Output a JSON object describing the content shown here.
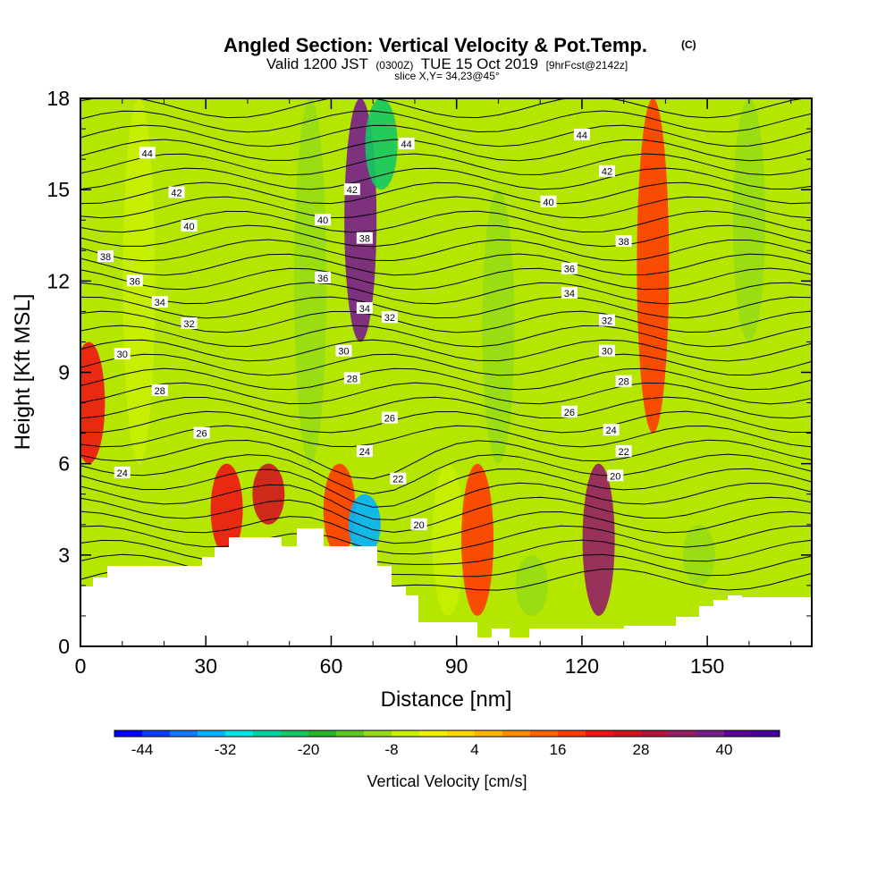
{
  "chart_data": {
    "type": "heatmap",
    "title": "Angled Section: Vertical Velocity & Pot.Temp.",
    "title_suffix": "(C)",
    "subtitle_parts": [
      "Valid 1200 JST",
      "(0300Z)",
      "TUE 15 Oct 2019",
      "[9hrFcst@2142z]"
    ],
    "slice_text": "slice X,Y= 34,23@45°",
    "xlabel": "Distance [nm]",
    "ylabel": "Height [Kft MSL]",
    "xlim": [
      0,
      175
    ],
    "ylim": [
      0,
      18
    ],
    "x_ticks": [
      0,
      30,
      60,
      90,
      120,
      150
    ],
    "y_ticks": [
      0,
      3,
      6,
      9,
      12,
      15,
      18
    ],
    "colorbar": {
      "title": "Vertical Velocity [cm/s]",
      "min": -48,
      "max": 48,
      "step": 4,
      "tick_values": [
        -44,
        -32,
        -20,
        -8,
        4,
        16,
        28,
        40
      ],
      "colors": [
        "#0000ff",
        "#0a3cff",
        "#0d7aff",
        "#00b4ff",
        "#00e6e6",
        "#00d2a0",
        "#14c864",
        "#28b428",
        "#5ac81e",
        "#96dc14",
        "#c8f000",
        "#f0f000",
        "#ffd700",
        "#ffb400",
        "#ff8c00",
        "#ff6400",
        "#ff3c00",
        "#f01414",
        "#d2141e",
        "#b4143c",
        "#961e64",
        "#781e8c",
        "#5a0096",
        "#46009b"
      ]
    },
    "velocity_bands": [
      {
        "x": 2,
        "z0": 6,
        "z1": 10,
        "value": 20
      },
      {
        "x": 14,
        "z0": 6,
        "z1": 18,
        "value": -8
      },
      {
        "x": 35,
        "z0": 3,
        "z1": 6,
        "value": 20
      },
      {
        "x": 45,
        "z0": 4,
        "z1": 6,
        "value": 24
      },
      {
        "x": 55,
        "z0": 6,
        "z1": 18,
        "value": -12
      },
      {
        "x": 62,
        "z0": 3,
        "z1": 6,
        "value": 16
      },
      {
        "x": 67,
        "z0": 10,
        "z1": 18,
        "value": 36
      },
      {
        "x": 72,
        "z0": 15,
        "z1": 18,
        "value": -24
      },
      {
        "x": 68,
        "z0": 3,
        "z1": 5,
        "value": -36
      },
      {
        "x": 88,
        "z0": 1,
        "z1": 6,
        "value": -8
      },
      {
        "x": 95,
        "z0": 1,
        "z1": 6,
        "value": 16
      },
      {
        "x": 100,
        "z0": 6,
        "z1": 15,
        "value": -12
      },
      {
        "x": 108,
        "z0": 1,
        "z1": 3,
        "value": -12
      },
      {
        "x": 124,
        "z0": 1,
        "z1": 6,
        "value": 32
      },
      {
        "x": 137,
        "z0": 7,
        "z1": 18,
        "value": 16
      },
      {
        "x": 148,
        "z0": 2,
        "z1": 4,
        "value": -12
      },
      {
        "x": 160,
        "z0": 10,
        "z1": 18,
        "value": -12
      }
    ],
    "theta_contour_labels": [
      {
        "text": "44",
        "x": 16,
        "y": 16.2
      },
      {
        "text": "42",
        "x": 23,
        "y": 14.9
      },
      {
        "text": "40",
        "x": 26,
        "y": 13.8
      },
      {
        "text": "38",
        "x": 6,
        "y": 12.8
      },
      {
        "text": "36",
        "x": 13,
        "y": 12.0
      },
      {
        "text": "34",
        "x": 19,
        "y": 11.3
      },
      {
        "text": "32",
        "x": 26,
        "y": 10.6
      },
      {
        "text": "30",
        "x": 10,
        "y": 9.6
      },
      {
        "text": "28",
        "x": 19,
        "y": 8.4
      },
      {
        "text": "26",
        "x": 29,
        "y": 7.0
      },
      {
        "text": "24",
        "x": 10,
        "y": 5.7
      },
      {
        "text": "44",
        "x": 78,
        "y": 16.5
      },
      {
        "text": "42",
        "x": 65,
        "y": 15.0
      },
      {
        "text": "40",
        "x": 58,
        "y": 14.0
      },
      {
        "text": "38",
        "x": 68,
        "y": 13.4
      },
      {
        "text": "36",
        "x": 58,
        "y": 12.1
      },
      {
        "text": "34",
        "x": 68,
        "y": 11.1
      },
      {
        "text": "32",
        "x": 74,
        "y": 10.8
      },
      {
        "text": "30",
        "x": 63,
        "y": 9.7
      },
      {
        "text": "28",
        "x": 65,
        "y": 8.8
      },
      {
        "text": "26",
        "x": 74,
        "y": 7.5
      },
      {
        "text": "24",
        "x": 68,
        "y": 6.4
      },
      {
        "text": "22",
        "x": 76,
        "y": 5.5
      },
      {
        "text": "20",
        "x": 81,
        "y": 4.0
      },
      {
        "text": "44",
        "x": 120,
        "y": 16.8
      },
      {
        "text": "42",
        "x": 126,
        "y": 15.6
      },
      {
        "text": "40",
        "x": 112,
        "y": 14.6
      },
      {
        "text": "38",
        "x": 130,
        "y": 13.3
      },
      {
        "text": "36",
        "x": 117,
        "y": 12.4
      },
      {
        "text": "34",
        "x": 117,
        "y": 11.6
      },
      {
        "text": "32",
        "x": 126,
        "y": 10.7
      },
      {
        "text": "30",
        "x": 126,
        "y": 9.7
      },
      {
        "text": "28",
        "x": 130,
        "y": 8.7
      },
      {
        "text": "26",
        "x": 117,
        "y": 7.7
      },
      {
        "text": "24",
        "x": 127,
        "y": 7.1
      },
      {
        "text": "22",
        "x": 130,
        "y": 6.4
      },
      {
        "text": "20",
        "x": 128,
        "y": 5.6
      }
    ]
  }
}
